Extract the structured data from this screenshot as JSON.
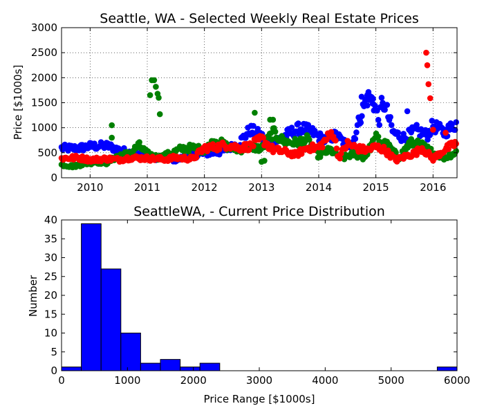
{
  "chart_data": [
    {
      "type": "scatter",
      "title": "Seattle, WA - Selected Weekly Real Estate Prices",
      "xlabel": "",
      "ylabel": "Price [$1000s]",
      "xlim": [
        2009.5,
        2016.42
      ],
      "ylim": [
        0,
        3000
      ],
      "xticks": [
        "2010",
        "2011",
        "2012",
        "2013",
        "2014",
        "2015",
        "2016"
      ],
      "yticks": [
        "0",
        "500",
        "1000",
        "1500",
        "2000",
        "2500",
        "3000"
      ],
      "grid": true,
      "series": [
        {
          "color": "#0000ff",
          "anchors": [
            [
              2009.5,
              590
            ],
            [
              2009.8,
              590
            ],
            [
              2010.0,
              630
            ],
            [
              2010.3,
              640
            ],
            [
              2010.5,
              560
            ],
            [
              2010.8,
              470
            ],
            [
              2011.0,
              420
            ],
            [
              2011.3,
              380
            ],
            [
              2011.5,
              360
            ],
            [
              2011.8,
              450
            ],
            [
              2012.0,
              480
            ],
            [
              2012.3,
              520
            ],
            [
              2012.6,
              690
            ],
            [
              2012.8,
              960
            ],
            [
              2013.0,
              830
            ],
            [
              2013.1,
              650
            ],
            [
              2013.3,
              760
            ],
            [
              2013.5,
              900
            ],
            [
              2013.7,
              1000
            ],
            [
              2013.9,
              900
            ],
            [
              2014.1,
              750
            ],
            [
              2014.3,
              850
            ],
            [
              2014.5,
              650
            ],
            [
              2014.6,
              720
            ],
            [
              2014.75,
              1300
            ],
            [
              2014.85,
              1600
            ],
            [
              2014.95,
              1550
            ],
            [
              2015.05,
              1150
            ],
            [
              2015.15,
              1500
            ],
            [
              2015.3,
              900
            ],
            [
              2015.5,
              800
            ],
            [
              2015.7,
              950
            ],
            [
              2015.9,
              850
            ],
            [
              2016.0,
              1050
            ],
            [
              2016.2,
              900
            ],
            [
              2016.42,
              1100
            ]
          ],
          "outliers": [
            [
              2014.75,
              1620
            ],
            [
              2014.85,
              1650
            ],
            [
              2014.95,
              1580
            ],
            [
              2015.1,
              1600
            ],
            [
              2015.55,
              1330
            ],
            [
              2014.72,
              1150
            ]
          ]
        },
        {
          "color": "#008000",
          "anchors": [
            [
              2009.5,
              260
            ],
            [
              2009.7,
              230
            ],
            [
              2009.9,
              280
            ],
            [
              2010.1,
              320
            ],
            [
              2010.3,
              300
            ],
            [
              2010.5,
              450
            ],
            [
              2010.7,
              480
            ],
            [
              2010.85,
              650
            ],
            [
              2011.0,
              480
            ],
            [
              2011.2,
              400
            ],
            [
              2011.4,
              480
            ],
            [
              2011.6,
              580
            ],
            [
              2011.8,
              600
            ],
            [
              2012.0,
              550
            ],
            [
              2012.2,
              750
            ],
            [
              2012.4,
              620
            ],
            [
              2012.6,
              560
            ],
            [
              2012.8,
              620
            ],
            [
              2013.0,
              580
            ],
            [
              2013.2,
              900
            ],
            [
              2013.4,
              720
            ],
            [
              2013.6,
              700
            ],
            [
              2013.8,
              760
            ],
            [
              2014.0,
              440
            ],
            [
              2014.2,
              560
            ],
            [
              2014.4,
              380
            ],
            [
              2014.6,
              480
            ],
            [
              2014.8,
              400
            ],
            [
              2015.0,
              800
            ],
            [
              2015.2,
              650
            ],
            [
              2015.4,
              400
            ],
            [
              2015.6,
              700
            ],
            [
              2015.8,
              650
            ],
            [
              2016.0,
              500
            ],
            [
              2016.2,
              400
            ],
            [
              2016.42,
              520
            ]
          ],
          "outliers": [
            [
              2010.38,
              1050
            ],
            [
              2010.38,
              800
            ],
            [
              2011.05,
              1650
            ],
            [
              2011.08,
              1950
            ],
            [
              2011.12,
              1950
            ],
            [
              2011.15,
              1820
            ],
            [
              2011.18,
              1680
            ],
            [
              2011.2,
              1600
            ],
            [
              2011.22,
              1270
            ],
            [
              2012.88,
              1300
            ],
            [
              2013.0,
              320
            ],
            [
              2013.05,
              340
            ],
            [
              2013.15,
              1160
            ],
            [
              2013.2,
              1160
            ]
          ]
        },
        {
          "color": "#ff0000",
          "anchors": [
            [
              2009.5,
              390
            ],
            [
              2009.8,
              400
            ],
            [
              2010.0,
              360
            ],
            [
              2010.3,
              380
            ],
            [
              2010.5,
              360
            ],
            [
              2010.7,
              400
            ],
            [
              2011.0,
              390
            ],
            [
              2011.3,
              370
            ],
            [
              2011.5,
              400
            ],
            [
              2011.8,
              380
            ],
            [
              2012.0,
              600
            ],
            [
              2012.2,
              610
            ],
            [
              2012.4,
              660
            ],
            [
              2012.6,
              600
            ],
            [
              2012.8,
              630
            ],
            [
              2013.0,
              780
            ],
            [
              2013.2,
              560
            ],
            [
              2013.4,
              520
            ],
            [
              2013.6,
              460
            ],
            [
              2013.8,
              600
            ],
            [
              2014.0,
              600
            ],
            [
              2014.25,
              920
            ],
            [
              2014.35,
              400
            ],
            [
              2014.5,
              680
            ],
            [
              2014.7,
              580
            ],
            [
              2014.85,
              550
            ],
            [
              2015.0,
              620
            ],
            [
              2015.15,
              560
            ],
            [
              2015.35,
              350
            ],
            [
              2015.5,
              420
            ],
            [
              2015.7,
              500
            ],
            [
              2015.8,
              600
            ],
            [
              2016.0,
              380
            ],
            [
              2016.2,
              560
            ],
            [
              2016.42,
              700
            ]
          ],
          "outliers": [
            [
              2015.88,
              2500
            ],
            [
              2015.9,
              2250
            ],
            [
              2015.92,
              1870
            ],
            [
              2015.95,
              1590
            ],
            [
              2016.0,
              960
            ],
            [
              2016.22,
              900
            ]
          ]
        }
      ]
    },
    {
      "type": "bar",
      "title": "SeattleWA,  - Current Price Distribution",
      "xlabel": "Price Range [$1000s]",
      "ylabel": "Number",
      "xlim": [
        0,
        6000
      ],
      "ylim": [
        0,
        40
      ],
      "xticks": [
        "0",
        "1000",
        "2000",
        "3000",
        "4000",
        "5000",
        "6000"
      ],
      "yticks": [
        "0",
        "5",
        "10",
        "15",
        "20",
        "25",
        "30",
        "35",
        "40"
      ],
      "bin_width": 300,
      "bins": [
        [
          0,
          1
        ],
        [
          300,
          39
        ],
        [
          600,
          27
        ],
        [
          900,
          10
        ],
        [
          1200,
          2
        ],
        [
          1500,
          3
        ],
        [
          1800,
          1
        ],
        [
          2100,
          2
        ],
        [
          5700,
          1
        ]
      ],
      "color": "#0000ff"
    }
  ]
}
